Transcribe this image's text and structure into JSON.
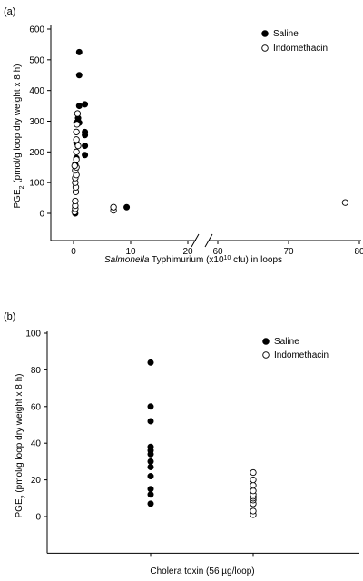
{
  "chart_data": [
    {
      "type": "scatter",
      "panel_label": "(a)",
      "ylabel": "PGE",
      "ylabel_sub": "2",
      "ylabel_rest": " (pmol/g loop dry weight x 8 h)",
      "xlabel_italic": "Salmonella",
      "xlabel_rest": " Typhimurium (x10",
      "xlabel_sup": "10",
      "xlabel_end": " cfu) in loops",
      "ylim": [
        0,
        600
      ],
      "y_ticks": [
        "0",
        "100",
        "200",
        "300",
        "400",
        "500",
        "600"
      ],
      "x_ticks": [
        "0",
        "10",
        "20",
        "60",
        "70",
        "80"
      ],
      "x_break": true,
      "grid": false,
      "legend_position": "top-right",
      "series": [
        {
          "name": "Saline",
          "marker": "filled-circle",
          "color": "#000000",
          "points": [
            [
              0.3,
              0
            ],
            [
              0.3,
              160
            ],
            [
              0.5,
              180
            ],
            [
              0.5,
              230
            ],
            [
              0.5,
              265
            ],
            [
              0.5,
              295
            ],
            [
              0.8,
              310
            ],
            [
              1.0,
              295
            ],
            [
              1.0,
              350
            ],
            [
              1.0,
              450
            ],
            [
              1.0,
              525
            ],
            [
              2.0,
              190
            ],
            [
              2.0,
              220
            ],
            [
              2.0,
              255
            ],
            [
              2.0,
              265
            ],
            [
              2.0,
              355
            ],
            [
              9.3,
              20
            ]
          ]
        },
        {
          "name": "Indomethacin",
          "marker": "open-circle",
          "color": "#000000",
          "points": [
            [
              0.2,
              5
            ],
            [
              0.3,
              15
            ],
            [
              0.3,
              25
            ],
            [
              0.3,
              40
            ],
            [
              0.4,
              70
            ],
            [
              0.4,
              85
            ],
            [
              0.3,
              100
            ],
            [
              0.3,
              115
            ],
            [
              0.5,
              125
            ],
            [
              0.3,
              140
            ],
            [
              0.5,
              150
            ],
            [
              0.2,
              155
            ],
            [
              0.5,
              175
            ],
            [
              0.5,
              200
            ],
            [
              0.8,
              220
            ],
            [
              0.5,
              240
            ],
            [
              0.5,
              265
            ],
            [
              0.6,
              290
            ],
            [
              0.7,
              325
            ],
            [
              7.0,
              10
            ],
            [
              7.0,
              20
            ],
            [
              78.0,
              35
            ]
          ]
        }
      ]
    },
    {
      "type": "scatter",
      "panel_label": "(b)",
      "ylabel": "PGE",
      "ylabel_sub": "2",
      "ylabel_rest": " (pmol/g loop dry weight x 8 h)",
      "xlabel": "Cholera toxin (56 µg/loop)",
      "ylim": [
        -20,
        100
      ],
      "y_ticks": [
        "0",
        "20",
        "40",
        "60",
        "80",
        "100"
      ],
      "grid": false,
      "legend_position": "top-right",
      "categories": [
        "Saline",
        "Indomethacin"
      ],
      "series": [
        {
          "name": "Saline",
          "marker": "filled-circle",
          "color": "#000000",
          "values": [
            7,
            12,
            15,
            22,
            27,
            30,
            34,
            36,
            38,
            52,
            60,
            84
          ]
        },
        {
          "name": "Indomethacin",
          "marker": "open-circle",
          "color": "#000000",
          "values": [
            1,
            3,
            7,
            9,
            10,
            11,
            12,
            14,
            17,
            20,
            24
          ]
        }
      ]
    }
  ]
}
